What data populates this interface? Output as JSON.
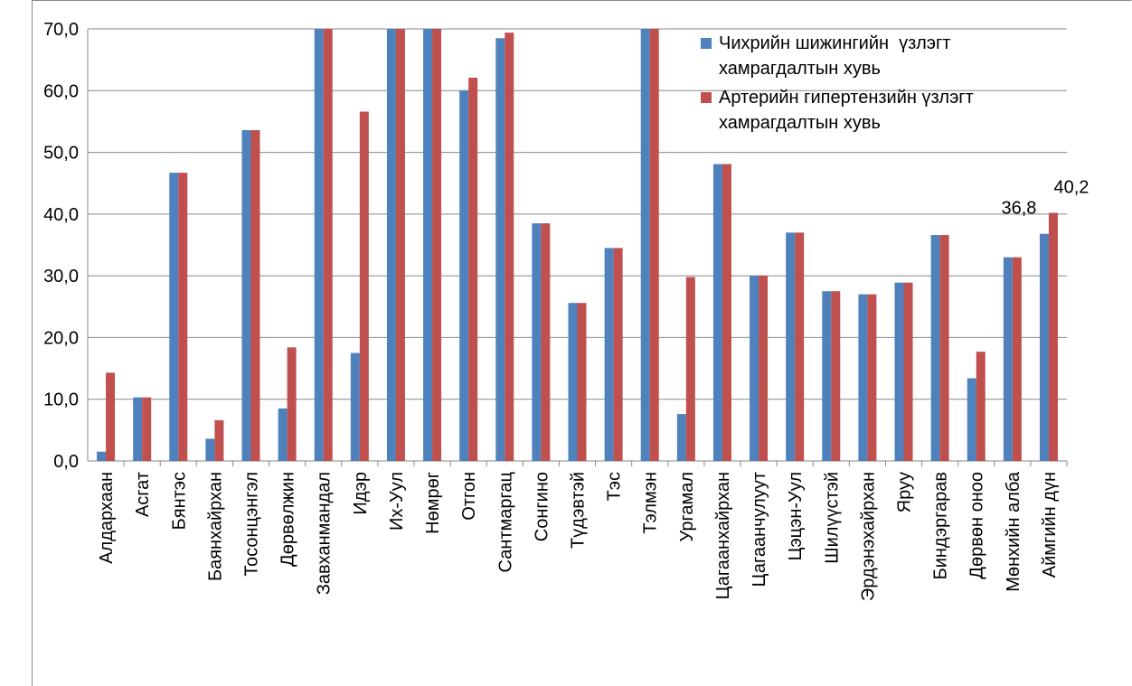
{
  "chart_data": {
    "type": "bar",
    "categories": [
      "Алдархаан",
      "Асгат",
      "Бянтэс",
      "Баянхайрхан",
      "Тосонцэнгэл",
      "Дөрвөлжин",
      "Завханмандал",
      "Идэр",
      "Их-Уул",
      "Нөмрөг",
      "Отгон",
      "Сантмаргац",
      "Сонгино",
      "Түдэвтэй",
      "Тэс",
      "Тэлмэн",
      "Ургамал",
      "Цагаанхайрхан",
      "Цагаанчулуут",
      "Цэцэн-Уул",
      "Шилүүстэй",
      "Эрдэнэхайрхан",
      "Яруу",
      "Биндэргарав",
      "Дөрвөн оноо",
      "Мөнхийн алба",
      "Аймгийн дүн"
    ],
    "series": [
      {
        "name": "Чихрийн шижингийн  үзлэгт хамрагдалтын хувь",
        "color": "#4f81bd",
        "values": [
          1.5,
          10.3,
          46.7,
          3.6,
          53.6,
          8.5,
          70,
          17.5,
          70,
          70,
          60.0,
          68.5,
          38.5,
          25.6,
          34.5,
          70,
          7.6,
          48.1,
          30.0,
          37.0,
          27.5,
          27.0,
          28.9,
          36.6,
          13.4,
          33.0,
          36.8
        ],
        "value_labels": [
          null,
          null,
          null,
          null,
          null,
          null,
          null,
          null,
          null,
          null,
          null,
          null,
          null,
          null,
          null,
          null,
          null,
          null,
          null,
          null,
          null,
          null,
          null,
          null,
          null,
          null,
          "36,8"
        ]
      },
      {
        "name": "Артерийн гипертензийн үзлэгт хамрагдалтын хувь",
        "color": "#c0504d",
        "values": [
          14.3,
          10.3,
          46.7,
          6.6,
          53.6,
          18.4,
          70,
          56.6,
          70,
          70,
          62.1,
          69.4,
          38.5,
          25.6,
          34.5,
          70,
          29.8,
          48.1,
          30.0,
          37.0,
          27.5,
          27.0,
          28.9,
          36.6,
          17.7,
          33.0,
          40.2
        ],
        "value_labels": [
          null,
          null,
          null,
          null,
          null,
          null,
          null,
          null,
          null,
          null,
          null,
          null,
          null,
          null,
          null,
          null,
          null,
          null,
          null,
          null,
          null,
          null,
          null,
          null,
          null,
          null,
          "40,2"
        ]
      }
    ],
    "ylim": [
      0,
      70
    ],
    "yticks": [
      {
        "value": 0,
        "label": "0,0"
      },
      {
        "value": 10,
        "label": "10,0"
      },
      {
        "value": 20,
        "label": "20,0"
      },
      {
        "value": 30,
        "label": "30,0"
      },
      {
        "value": 40,
        "label": "40,0"
      },
      {
        "value": 50,
        "label": "50,0"
      },
      {
        "value": 60,
        "label": "60,0"
      },
      {
        "value": 70,
        "label": "70,0"
      }
    ],
    "grid": true,
    "legend": "upper right"
  }
}
